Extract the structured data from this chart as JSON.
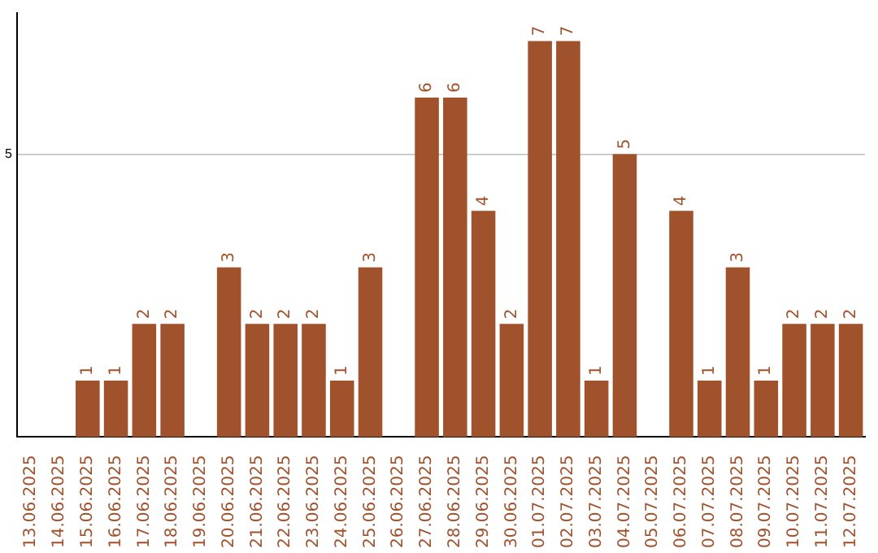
{
  "chart_data": {
    "type": "bar",
    "categories": [
      "13.06.2025",
      "14.06.2025",
      "15.06.2025",
      "16.06.2025",
      "17.06.2025",
      "18.06.2025",
      "19.06.2025",
      "20.06.2025",
      "21.06.2025",
      "22.06.2025",
      "23.06.2025",
      "24.06.2025",
      "25.06.2025",
      "26.06.2025",
      "27.06.2025",
      "28.06.2025",
      "29.06.2025",
      "30.06.2025",
      "01.07.2025",
      "02.07.2025",
      "03.07.2025",
      "04.07.2025",
      "05.07.2025",
      "06.07.2025",
      "07.07.2025",
      "08.07.2025",
      "09.07.2025",
      "10.07.2025",
      "11.07.2025",
      "12.07.2025"
    ],
    "values": [
      0,
      0,
      1,
      1,
      2,
      2,
      0,
      3,
      2,
      2,
      2,
      1,
      3,
      0,
      6,
      6,
      4,
      2,
      7,
      7,
      1,
      5,
      0,
      4,
      1,
      3,
      1,
      2,
      2,
      2
    ],
    "value_labels": [
      null,
      null,
      "1",
      "1",
      "2",
      "2",
      null,
      "3",
      "2",
      "2",
      "2",
      "1",
      "3",
      null,
      "6",
      "6",
      "4",
      "2",
      "7",
      "7",
      "1",
      "5",
      null,
      "4",
      "1",
      "3",
      "1",
      "2",
      "2",
      "2"
    ],
    "color": "#a0522d",
    "ylim": [
      0,
      7.5
    ],
    "yticks": [
      5
    ],
    "grid": "y",
    "legend": false
  }
}
